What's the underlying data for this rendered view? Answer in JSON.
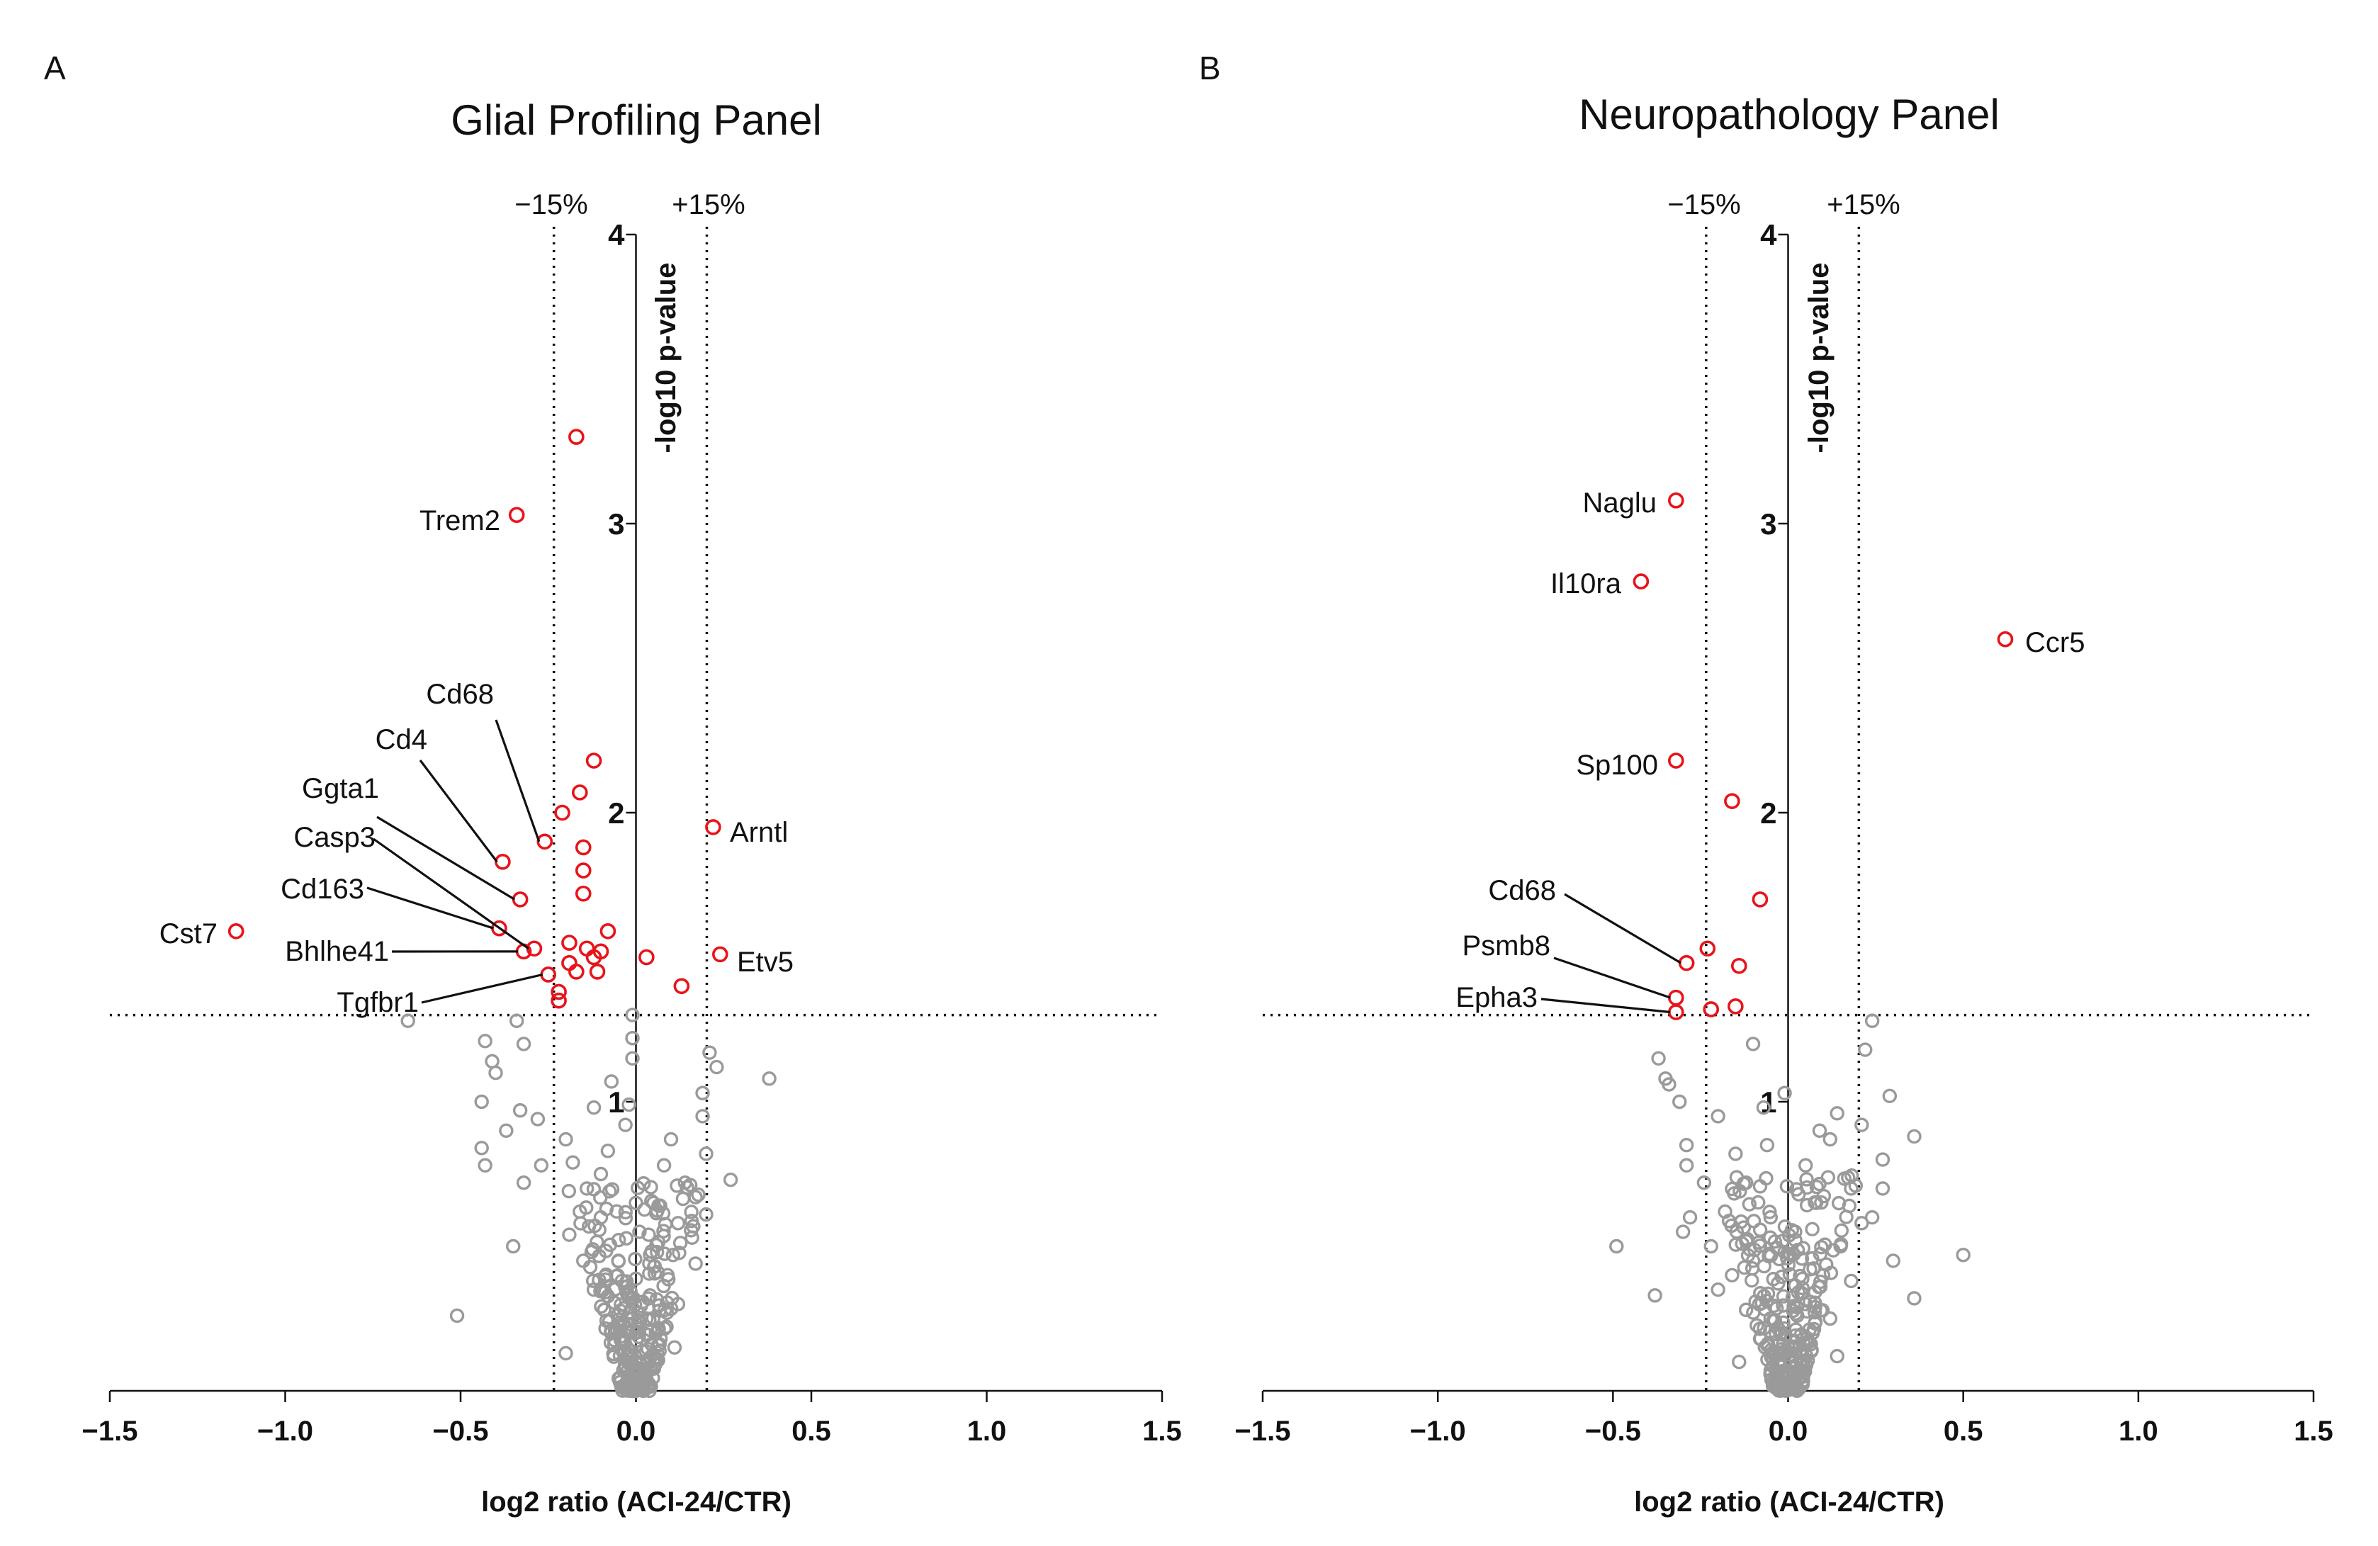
{
  "figure": {
    "x_axis_label": "log2 ratio (ACI-24/CTR)",
    "y_axis_label": "-log10 p-value",
    "x_ticks": [
      "−1.5",
      "−1.0",
      "−0.5",
      "0.0",
      "0.5",
      "1.0",
      "1.5"
    ],
    "y_ticks": [
      "1",
      "2",
      "3",
      "4"
    ],
    "threshold_labels": {
      "minus": "−15%",
      "plus": "+15%"
    },
    "colors": {
      "significant": "#e8141b",
      "not_significant": "#9a9a9a",
      "axis": "#111111"
    }
  },
  "chart_data": [
    {
      "panel": "A",
      "type": "scatter",
      "title": "Glial Profiling Panel",
      "xlabel": "log2 ratio (ACI-24/CTR)",
      "ylabel": "-log10 p-value",
      "xlim": [
        -1.5,
        1.5
      ],
      "ylim": [
        0,
        4
      ],
      "fold_change_thresholds": [
        -0.234,
        0.202
      ],
      "p_value_threshold": 1.3,
      "significant": [
        {
          "x": -0.17,
          "y": 3.3,
          "label": ""
        },
        {
          "x": -0.34,
          "y": 3.03,
          "label": "Trem2"
        },
        {
          "x": -0.12,
          "y": 2.18,
          "label": ""
        },
        {
          "x": -0.16,
          "y": 2.07,
          "label": ""
        },
        {
          "x": -0.21,
          "y": 2.0,
          "label": ""
        },
        {
          "x": 0.22,
          "y": 1.95,
          "label": "Arntl"
        },
        {
          "x": -0.26,
          "y": 1.9,
          "label": "Cd68"
        },
        {
          "x": -0.15,
          "y": 1.88,
          "label": ""
        },
        {
          "x": -0.38,
          "y": 1.83,
          "label": "Cd4"
        },
        {
          "x": -0.15,
          "y": 1.8,
          "label": ""
        },
        {
          "x": -0.15,
          "y": 1.72,
          "label": ""
        },
        {
          "x": -0.33,
          "y": 1.7,
          "label": "Ggta1"
        },
        {
          "x": -1.14,
          "y": 1.59,
          "label": "Cst7"
        },
        {
          "x": -0.39,
          "y": 1.6,
          "label": "Cd163"
        },
        {
          "x": -0.08,
          "y": 1.59,
          "label": ""
        },
        {
          "x": -0.29,
          "y": 1.53,
          "label": "Casp3"
        },
        {
          "x": -0.32,
          "y": 1.52,
          "label": "Bhlhe41"
        },
        {
          "x": -0.19,
          "y": 1.55,
          "label": ""
        },
        {
          "x": -0.14,
          "y": 1.53,
          "label": ""
        },
        {
          "x": -0.1,
          "y": 1.52,
          "label": ""
        },
        {
          "x": -0.12,
          "y": 1.5,
          "label": ""
        },
        {
          "x": 0.03,
          "y": 1.5,
          "label": ""
        },
        {
          "x": 0.24,
          "y": 1.51,
          "label": "Etv5"
        },
        {
          "x": -0.19,
          "y": 1.48,
          "label": ""
        },
        {
          "x": -0.17,
          "y": 1.45,
          "label": ""
        },
        {
          "x": -0.11,
          "y": 1.45,
          "label": ""
        },
        {
          "x": -0.25,
          "y": 1.44,
          "label": "Tgfbr1"
        },
        {
          "x": 0.13,
          "y": 1.4,
          "label": ""
        },
        {
          "x": -0.22,
          "y": 1.38,
          "label": ""
        },
        {
          "x": -0.22,
          "y": 1.35,
          "label": ""
        }
      ],
      "not_significant": [
        {
          "x": -0.65,
          "y": 1.28
        },
        {
          "x": -0.43,
          "y": 1.21
        },
        {
          "x": -0.41,
          "y": 1.14
        },
        {
          "x": -0.4,
          "y": 1.1
        },
        {
          "x": -0.44,
          "y": 1.0
        },
        {
          "x": -0.34,
          "y": 1.28
        },
        {
          "x": -0.32,
          "y": 1.2
        },
        {
          "x": -0.33,
          "y": 0.97
        },
        {
          "x": -0.28,
          "y": 0.94
        },
        {
          "x": -0.37,
          "y": 0.9
        },
        {
          "x": -0.44,
          "y": 0.84
        },
        {
          "x": -0.43,
          "y": 0.78
        },
        {
          "x": -0.51,
          "y": 0.26
        },
        {
          "x": -0.35,
          "y": 0.5
        },
        {
          "x": -0.32,
          "y": 0.72
        },
        {
          "x": -0.01,
          "y": 1.3
        },
        {
          "x": -0.01,
          "y": 1.22
        },
        {
          "x": -0.01,
          "y": 1.15
        },
        {
          "x": 0.23,
          "y": 1.12
        },
        {
          "x": 0.21,
          "y": 1.17
        },
        {
          "x": 0.19,
          "y": 1.03
        },
        {
          "x": 0.38,
          "y": 1.08
        },
        {
          "x": 0.19,
          "y": 0.95
        },
        {
          "x": 0.27,
          "y": 0.73
        },
        {
          "x": 0.2,
          "y": 0.82
        },
        {
          "x": 0.17,
          "y": 0.67
        },
        {
          "x": 0.2,
          "y": 0.61
        },
        {
          "x": 0.17,
          "y": 0.44
        },
        {
          "x": 0.16,
          "y": 0.53
        },
        {
          "x": -0.07,
          "y": 1.07
        },
        {
          "x": -0.02,
          "y": 0.99
        },
        {
          "x": -0.12,
          "y": 0.98
        },
        {
          "x": -0.2,
          "y": 0.87
        },
        {
          "x": -0.18,
          "y": 0.79
        },
        {
          "x": 0.08,
          "y": 0.78
        },
        {
          "x": -0.27,
          "y": 0.78
        },
        {
          "x": -0.08,
          "y": 0.83
        },
        {
          "x": -0.03,
          "y": 0.92
        },
        {
          "x": 0.1,
          "y": 0.87
        },
        {
          "x": 0.14,
          "y": 0.72
        },
        {
          "x": -0.14,
          "y": 0.7
        },
        {
          "x": 0.05,
          "y": 0.65
        },
        {
          "x": 0.12,
          "y": 0.58
        },
        {
          "x": -0.1,
          "y": 0.6
        },
        {
          "x": -0.19,
          "y": 0.54
        },
        {
          "x": 0.06,
          "y": 0.48
        },
        {
          "x": 0.12,
          "y": 0.3
        },
        {
          "x": -0.12,
          "y": 0.35
        },
        {
          "x": -0.2,
          "y": 0.13
        },
        {
          "x": 0.07,
          "y": 0.18
        },
        {
          "x": -0.05,
          "y": 0.45
        },
        {
          "x": 0.01,
          "y": 0.55
        },
        {
          "x": -0.06,
          "y": 0.2
        },
        {
          "x": 0.03,
          "y": 0.25
        },
        {
          "x": -0.02,
          "y": 0.05
        },
        {
          "x": 0.02,
          "y": 0.1
        },
        {
          "x": -0.01,
          "y": 0.02
        },
        {
          "x": 0.04,
          "y": 0.33
        },
        {
          "x": -0.04,
          "y": 0.38
        },
        {
          "x": -0.15,
          "y": 0.45
        },
        {
          "x": 0.09,
          "y": 0.4
        },
        {
          "x": -0.09,
          "y": 0.28
        },
        {
          "x": 0.0,
          "y": 0.65
        },
        {
          "x": -0.1,
          "y": 0.75
        },
        {
          "x": -0.16,
          "y": 0.62
        },
        {
          "x": 0.11,
          "y": 0.15
        }
      ]
    },
    {
      "panel": "B",
      "type": "scatter",
      "title": "Neuropathology Panel",
      "xlabel": "log2 ratio (ACI-24/CTR)",
      "ylabel": "-log10 p-value",
      "xlim": [
        -1.5,
        1.5
      ],
      "ylim": [
        0,
        4
      ],
      "fold_change_thresholds": [
        -0.234,
        0.202
      ],
      "p_value_threshold": 1.3,
      "significant": [
        {
          "x": -0.32,
          "y": 3.08,
          "label": "Naglu"
        },
        {
          "x": -0.42,
          "y": 2.8,
          "label": "Il10ra"
        },
        {
          "x": 0.62,
          "y": 2.6,
          "label": "Ccr5"
        },
        {
          "x": -0.32,
          "y": 2.18,
          "label": "Sp100"
        },
        {
          "x": -0.16,
          "y": 2.04,
          "label": ""
        },
        {
          "x": -0.08,
          "y": 1.7,
          "label": ""
        },
        {
          "x": -0.29,
          "y": 1.48,
          "label": "Cd68"
        },
        {
          "x": -0.23,
          "y": 1.53,
          "label": ""
        },
        {
          "x": -0.14,
          "y": 1.47,
          "label": ""
        },
        {
          "x": -0.32,
          "y": 1.36,
          "label": "Psmb8"
        },
        {
          "x": -0.32,
          "y": 1.31,
          "label": "Epha3"
        },
        {
          "x": -0.22,
          "y": 1.32,
          "label": ""
        },
        {
          "x": -0.15,
          "y": 1.33,
          "label": ""
        }
      ],
      "not_significant": [
        {
          "x": 0.24,
          "y": 1.28
        },
        {
          "x": 0.22,
          "y": 1.18
        },
        {
          "x": -0.37,
          "y": 1.15
        },
        {
          "x": -0.35,
          "y": 1.08
        },
        {
          "x": -0.34,
          "y": 1.06
        },
        {
          "x": -0.31,
          "y": 1.0
        },
        {
          "x": -0.1,
          "y": 1.2
        },
        {
          "x": -0.01,
          "y": 1.03
        },
        {
          "x": 0.29,
          "y": 1.02
        },
        {
          "x": 0.14,
          "y": 0.96
        },
        {
          "x": 0.21,
          "y": 0.92
        },
        {
          "x": -0.2,
          "y": 0.95
        },
        {
          "x": -0.07,
          "y": 0.98
        },
        {
          "x": 0.36,
          "y": 0.88
        },
        {
          "x": -0.29,
          "y": 0.85
        },
        {
          "x": -0.29,
          "y": 0.78
        },
        {
          "x": 0.27,
          "y": 0.8
        },
        {
          "x": 0.12,
          "y": 0.87
        },
        {
          "x": 0.27,
          "y": 0.7
        },
        {
          "x": -0.28,
          "y": 0.6
        },
        {
          "x": -0.3,
          "y": 0.55
        },
        {
          "x": -0.49,
          "y": 0.5
        },
        {
          "x": -0.38,
          "y": 0.33
        },
        {
          "x": 0.5,
          "y": 0.47
        },
        {
          "x": 0.3,
          "y": 0.45
        },
        {
          "x": 0.36,
          "y": 0.32
        },
        {
          "x": 0.24,
          "y": 0.6
        },
        {
          "x": 0.18,
          "y": 0.7
        },
        {
          "x": 0.05,
          "y": 0.78
        },
        {
          "x": -0.15,
          "y": 0.82
        },
        {
          "x": -0.12,
          "y": 0.72
        },
        {
          "x": 0.08,
          "y": 0.65
        },
        {
          "x": -0.05,
          "y": 0.6
        },
        {
          "x": 0.02,
          "y": 0.55
        },
        {
          "x": -0.18,
          "y": 0.62
        },
        {
          "x": 0.15,
          "y": 0.5
        },
        {
          "x": -0.1,
          "y": 0.45
        },
        {
          "x": 0.1,
          "y": 0.4
        },
        {
          "x": -0.2,
          "y": 0.35
        },
        {
          "x": 0.05,
          "y": 0.3
        },
        {
          "x": -0.05,
          "y": 0.25
        },
        {
          "x": 0.0,
          "y": 0.15
        },
        {
          "x": -0.02,
          "y": 0.05
        },
        {
          "x": 0.02,
          "y": 0.08
        },
        {
          "x": -0.08,
          "y": 0.18
        },
        {
          "x": 0.07,
          "y": 0.2
        },
        {
          "x": -0.12,
          "y": 0.28
        },
        {
          "x": 0.12,
          "y": 0.25
        },
        {
          "x": -0.16,
          "y": 0.4
        },
        {
          "x": 0.18,
          "y": 0.38
        },
        {
          "x": -0.01,
          "y": 0.48
        },
        {
          "x": 0.03,
          "y": 0.68
        },
        {
          "x": -0.06,
          "y": 0.85
        },
        {
          "x": 0.09,
          "y": 0.9
        },
        {
          "x": -0.24,
          "y": 0.72
        },
        {
          "x": 0.21,
          "y": 0.58
        },
        {
          "x": -0.22,
          "y": 0.5
        },
        {
          "x": 0.14,
          "y": 0.12
        },
        {
          "x": -0.14,
          "y": 0.1
        }
      ]
    }
  ]
}
